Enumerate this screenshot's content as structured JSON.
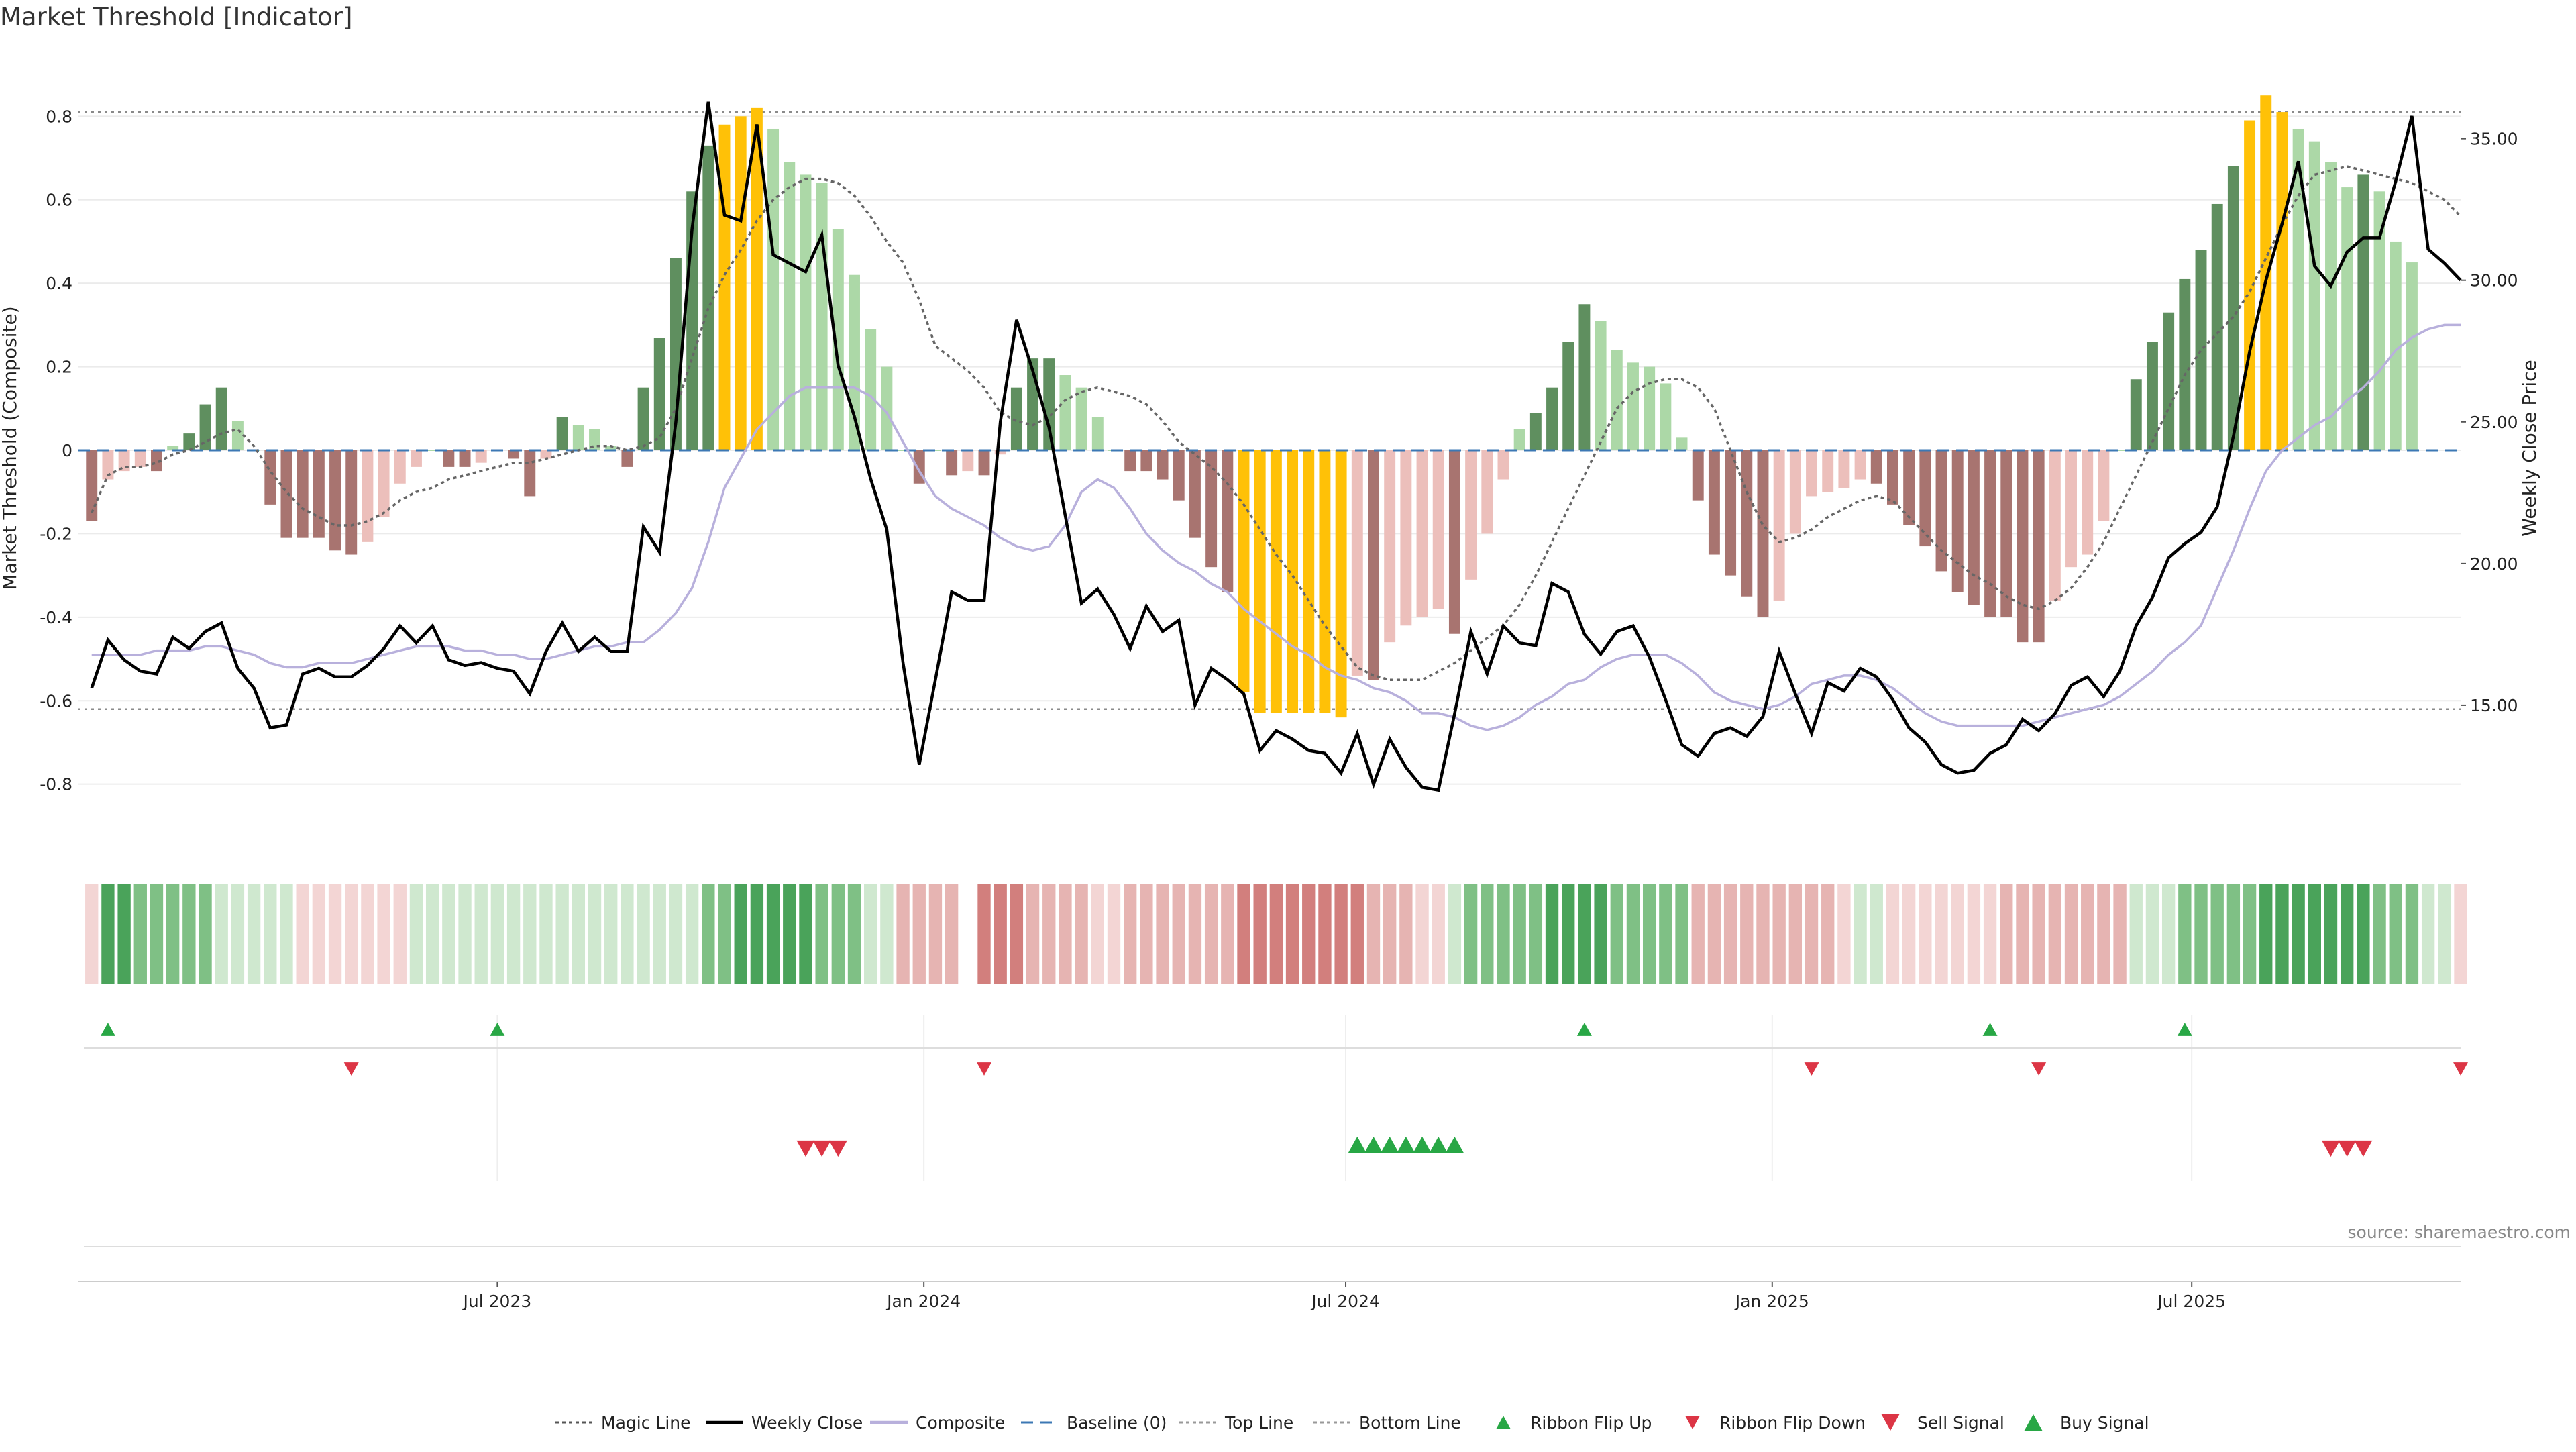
{
  "title": "Market Threshold [Indicator]",
  "source": "source: sharemaestro.com",
  "colors": {
    "strong_up": "#5f8f5f",
    "weak_up": "#acd8a7",
    "strong_down": "#a87470",
    "weak_down": "#ecbfbb",
    "extreme": "#ffc107",
    "close_line": "#000000",
    "composite_line": "#b8b0dc",
    "magic_line": "#666666",
    "baseline": "#3c78b4",
    "signal_up": "#28a745",
    "signal_down": "#dc3545",
    "ribbon_up_strong": "#4aa35a",
    "ribbon_up_weak": "#cfe8cf",
    "ribbon_down_strong": "#d27f7d",
    "ribbon_down_weak": "#f3d5d4"
  },
  "chart_data": {
    "type": "bar",
    "title": "Market Threshold [Indicator]",
    "ylabel": "Market Threshold (Composite)",
    "y2label": "Weekly Close Price",
    "ylim": [
      -0.95,
      0.95
    ],
    "y2lim": [
      10.0,
      38.0
    ],
    "yticks": [
      "-0.8",
      "-0.6",
      "-0.4",
      "-0.2",
      "0",
      "0.2",
      "0.4",
      "0.6",
      "0.8"
    ],
    "y2ticks": [
      "15.00",
      "20.00",
      "25.00",
      "30.00",
      "35.00"
    ],
    "x_start": "2023-01-01",
    "x_end": "2025-10-25",
    "xticks": [
      {
        "date": "2023-07-01",
        "label": "Jul 2023"
      },
      {
        "date": "2024-01-01",
        "label": "Jan 2024"
      },
      {
        "date": "2024-07-01",
        "label": "Jul 2024"
      },
      {
        "date": "2025-01-01",
        "label": "Jan 2025"
      },
      {
        "date": "2025-07-01",
        "label": "Jul 2025"
      }
    ],
    "top_line": 0.81,
    "bottom_line": -0.62,
    "first_week": "2023-01-07",
    "weekly_close": [
      15.6,
      17.3,
      16.6,
      16.2,
      16.1,
      17.4,
      17.0,
      17.6,
      17.9,
      16.3,
      15.6,
      14.2,
      14.3,
      16.1,
      16.3,
      16.0,
      16.0,
      16.4,
      17.0,
      17.8,
      17.2,
      17.8,
      16.6,
      16.4,
      16.5,
      16.3,
      16.2,
      15.4,
      16.9,
      17.9,
      16.9,
      17.4,
      16.9,
      16.9,
      21.3,
      20.4,
      25.0,
      31.8,
      36.3,
      32.3,
      32.1,
      35.5,
      30.9,
      30.6,
      30.3,
      31.6,
      27.0,
      25.2,
      23.0,
      21.2,
      16.5,
      12.9,
      15.9,
      19.0,
      18.7,
      18.7,
      25.0,
      28.6,
      26.8,
      24.8,
      21.7,
      18.6,
      19.1,
      18.2,
      17.0,
      18.5,
      17.6,
      18.0,
      15.0,
      16.3,
      15.9,
      15.4,
      13.4,
      14.1,
      13.8,
      13.4,
      13.3,
      12.6,
      14.0,
      12.2,
      13.8,
      12.8,
      12.1,
      12.0,
      14.7,
      17.6,
      16.1,
      17.8,
      17.2,
      17.1,
      19.3,
      19.0,
      17.5,
      16.8,
      17.6,
      17.8,
      16.7,
      15.2,
      13.6,
      13.2,
      14.0,
      14.2,
      13.9,
      14.6,
      16.9,
      15.4,
      14.0,
      15.8,
      15.5,
      16.3,
      16.0,
      15.2,
      14.2,
      13.7,
      12.9,
      12.6,
      12.7,
      13.3,
      13.6,
      14.5,
      14.1,
      14.7,
      15.7,
      16.0,
      15.3,
      16.2,
      17.8,
      18.8,
      20.2,
      20.7,
      21.1,
      22.0,
      24.5,
      27.5,
      30.0,
      32.0,
      34.2,
      30.5,
      29.8,
      31.0,
      31.5,
      31.5,
      33.5,
      35.8,
      31.1,
      30.6,
      30.0
    ],
    "composite": [
      -0.49,
      -0.49,
      -0.49,
      -0.49,
      -0.48,
      -0.48,
      -0.48,
      -0.47,
      -0.47,
      -0.48,
      -0.49,
      -0.51,
      -0.52,
      -0.52,
      -0.51,
      -0.51,
      -0.51,
      -0.5,
      -0.49,
      -0.48,
      -0.47,
      -0.47,
      -0.47,
      -0.48,
      -0.48,
      -0.49,
      -0.49,
      -0.5,
      -0.5,
      -0.49,
      -0.48,
      -0.47,
      -0.47,
      -0.46,
      -0.46,
      -0.43,
      -0.39,
      -0.33,
      -0.22,
      -0.09,
      -0.02,
      0.05,
      0.09,
      0.13,
      0.15,
      0.15,
      0.15,
      0.15,
      0.13,
      0.09,
      0.02,
      -0.05,
      -0.11,
      -0.14,
      -0.16,
      -0.18,
      -0.21,
      -0.23,
      -0.24,
      -0.23,
      -0.18,
      -0.1,
      -0.07,
      -0.09,
      -0.14,
      -0.2,
      -0.24,
      -0.27,
      -0.29,
      -0.32,
      -0.34,
      -0.38,
      -0.41,
      -0.44,
      -0.47,
      -0.49,
      -0.52,
      -0.54,
      -0.55,
      -0.57,
      -0.58,
      -0.6,
      -0.63,
      -0.63,
      -0.64,
      -0.66,
      -0.67,
      -0.66,
      -0.64,
      -0.61,
      -0.59,
      -0.56,
      -0.55,
      -0.52,
      -0.5,
      -0.49,
      -0.49,
      -0.49,
      -0.51,
      -0.54,
      -0.58,
      -0.6,
      -0.61,
      -0.62,
      -0.61,
      -0.59,
      -0.56,
      -0.55,
      -0.54,
      -0.54,
      -0.55,
      -0.57,
      -0.6,
      -0.63,
      -0.65,
      -0.66,
      -0.66,
      -0.66,
      -0.66,
      -0.66,
      -0.65,
      -0.64,
      -0.63,
      -0.62,
      -0.61,
      -0.59,
      -0.56,
      -0.53,
      -0.49,
      -0.46,
      -0.42,
      -0.33,
      -0.24,
      -0.14,
      -0.05,
      0.0,
      0.03,
      0.06,
      0.08,
      0.12,
      0.15,
      0.19,
      0.24,
      0.27,
      0.29,
      0.3,
      0.3
    ],
    "magic_line": [
      -0.15,
      -0.06,
      -0.04,
      -0.04,
      -0.03,
      -0.01,
      0.0,
      0.02,
      0.04,
      0.05,
      0.01,
      -0.05,
      -0.1,
      -0.14,
      -0.16,
      -0.18,
      -0.18,
      -0.17,
      -0.15,
      -0.12,
      -0.1,
      -0.09,
      -0.07,
      -0.06,
      -0.05,
      -0.04,
      -0.03,
      -0.03,
      -0.02,
      -0.01,
      0.0,
      0.01,
      0.01,
      0.0,
      0.01,
      0.03,
      0.1,
      0.22,
      0.34,
      0.42,
      0.48,
      0.55,
      0.6,
      0.63,
      0.65,
      0.65,
      0.64,
      0.61,
      0.56,
      0.5,
      0.45,
      0.36,
      0.25,
      0.22,
      0.19,
      0.15,
      0.09,
      0.07,
      0.06,
      0.08,
      0.12,
      0.14,
      0.15,
      0.14,
      0.13,
      0.11,
      0.07,
      0.02,
      -0.01,
      -0.04,
      -0.08,
      -0.13,
      -0.19,
      -0.25,
      -0.3,
      -0.36,
      -0.42,
      -0.47,
      -0.52,
      -0.54,
      -0.55,
      -0.55,
      -0.55,
      -0.53,
      -0.51,
      -0.48,
      -0.45,
      -0.42,
      -0.37,
      -0.3,
      -0.22,
      -0.14,
      -0.06,
      0.02,
      0.1,
      0.14,
      0.16,
      0.17,
      0.17,
      0.15,
      0.1,
      0.0,
      -0.1,
      -0.18,
      -0.22,
      -0.21,
      -0.19,
      -0.16,
      -0.14,
      -0.12,
      -0.11,
      -0.12,
      -0.16,
      -0.2,
      -0.24,
      -0.27,
      -0.3,
      -0.32,
      -0.35,
      -0.37,
      -0.38,
      -0.36,
      -0.33,
      -0.28,
      -0.22,
      -0.14,
      -0.06,
      0.02,
      0.1,
      0.18,
      0.24,
      0.28,
      0.32,
      0.38,
      0.46,
      0.54,
      0.61,
      0.66,
      0.67,
      0.68,
      0.67,
      0.66,
      0.65,
      0.64,
      0.62,
      0.6,
      0.56
    ],
    "bars": [
      -0.17,
      -0.07,
      -0.05,
      -0.04,
      -0.05,
      0.01,
      0.04,
      0.11,
      0.15,
      0.07,
      0.0,
      -0.13,
      -0.21,
      -0.21,
      -0.21,
      -0.24,
      -0.25,
      -0.22,
      -0.16,
      -0.08,
      -0.04,
      0.0,
      -0.04,
      -0.04,
      -0.03,
      0.0,
      -0.02,
      -0.11,
      -0.02,
      0.08,
      0.06,
      0.05,
      0.01,
      -0.04,
      0.15,
      0.27,
      0.46,
      0.62,
      0.73,
      0.78,
      0.8,
      0.82,
      0.77,
      0.69,
      0.66,
      0.64,
      0.53,
      0.42,
      0.29,
      0.2,
      0.0,
      -0.08,
      0.0,
      -0.06,
      -0.05,
      -0.06,
      -0.01,
      0.15,
      0.22,
      0.22,
      0.18,
      0.15,
      0.08,
      0.0,
      -0.05,
      -0.05,
      -0.07,
      -0.12,
      -0.21,
      -0.28,
      -0.34,
      -0.58,
      -0.63,
      -0.63,
      -0.63,
      -0.63,
      -0.63,
      -0.64,
      -0.54,
      -0.55,
      -0.46,
      -0.42,
      -0.4,
      -0.38,
      -0.44,
      -0.31,
      -0.2,
      -0.07,
      0.05,
      0.09,
      0.15,
      0.26,
      0.35,
      0.31,
      0.24,
      0.21,
      0.2,
      0.16,
      0.03,
      -0.12,
      -0.25,
      -0.3,
      -0.35,
      -0.4,
      -0.36,
      -0.2,
      -0.11,
      -0.1,
      -0.09,
      -0.07,
      -0.08,
      -0.13,
      -0.18,
      -0.23,
      -0.29,
      -0.34,
      -0.37,
      -0.4,
      -0.4,
      -0.46,
      -0.46,
      -0.36,
      -0.28,
      -0.25,
      -0.17,
      0.0,
      0.17,
      0.26,
      0.33,
      0.41,
      0.48,
      0.59,
      0.68,
      0.79,
      0.85,
      0.81,
      0.77,
      0.74,
      0.69,
      0.63,
      0.66,
      0.62,
      0.5,
      0.45
    ],
    "ribbon": [
      -1,
      3,
      3,
      2,
      2,
      2,
      2,
      2,
      1,
      1,
      1,
      1,
      1,
      -1,
      -1,
      -1,
      -1,
      -1,
      -1,
      -1,
      1,
      1,
      1,
      1,
      1,
      1,
      1,
      1,
      1,
      1,
      1,
      1,
      1,
      1,
      1,
      1,
      1,
      1,
      2,
      2,
      3,
      3,
      3,
      3,
      3,
      2,
      2,
      2,
      1,
      1,
      -2,
      -2,
      -2,
      -2,
      0,
      -3,
      -3,
      -3,
      -2,
      -2,
      -2,
      -2,
      -1,
      -1,
      -2,
      -2,
      -2,
      -2,
      -2,
      -2,
      -2,
      -3,
      -3,
      -3,
      -3,
      -3,
      -3,
      -3,
      -3,
      -2,
      -2,
      -2,
      -1,
      -1,
      1,
      2,
      2,
      2,
      2,
      2,
      3,
      3,
      3,
      3,
      2,
      2,
      2,
      2,
      2,
      -2,
      -2,
      -2,
      -2,
      -2,
      -2,
      -2,
      -2,
      -2,
      -1,
      1,
      1,
      -1,
      -1,
      -1,
      -1,
      -1,
      -1,
      -1,
      -2,
      -2,
      -2,
      -2,
      -2,
      -2,
      -2,
      -2,
      1,
      1,
      1,
      2,
      2,
      2,
      2,
      2,
      3,
      3,
      3,
      3,
      3,
      3,
      3,
      2,
      2,
      2,
      1,
      1,
      -1
    ],
    "ribbon_flip_up": [
      "2023-01-14",
      "2023-07-01",
      "2024-10-12",
      "2025-04-05",
      "2025-06-28"
    ],
    "ribbon_flip_down": [
      "2023-04-29",
      "2024-01-27",
      "2025-01-18",
      "2025-04-26",
      "2025-10-25"
    ],
    "sell_signal": [
      "2023-11-11",
      "2023-11-18",
      "2023-11-25",
      "2025-08-30",
      "2025-09-06",
      "2025-09-13"
    ],
    "buy_signal": [
      "2024-07-06",
      "2024-07-13",
      "2024-07-20",
      "2024-07-27",
      "2024-08-03",
      "2024-08-10",
      "2024-08-17"
    ],
    "legend": [
      {
        "label": "Magic Line",
        "kind": "dotted",
        "color": "#555555"
      },
      {
        "label": "Weekly Close",
        "kind": "solid",
        "color": "#000000"
      },
      {
        "label": "Composite",
        "kind": "solid",
        "color": "#b8b0dc"
      },
      {
        "label": "Baseline (0)",
        "kind": "dashed",
        "color": "#3c78b4"
      },
      {
        "label": "Top Line",
        "kind": "dotted",
        "color": "#999999"
      },
      {
        "label": "Bottom Line",
        "kind": "dotted",
        "color": "#999999"
      },
      {
        "label": "Ribbon Flip Up",
        "kind": "tri-up-small",
        "color": "#28a745"
      },
      {
        "label": "Ribbon Flip Down",
        "kind": "tri-down-small",
        "color": "#dc3545"
      },
      {
        "label": "Sell Signal",
        "kind": "tri-down",
        "color": "#dc3545"
      },
      {
        "label": "Buy Signal",
        "kind": "tri-up",
        "color": "#28a745"
      }
    ],
    "legend_position": "bottom-center"
  }
}
